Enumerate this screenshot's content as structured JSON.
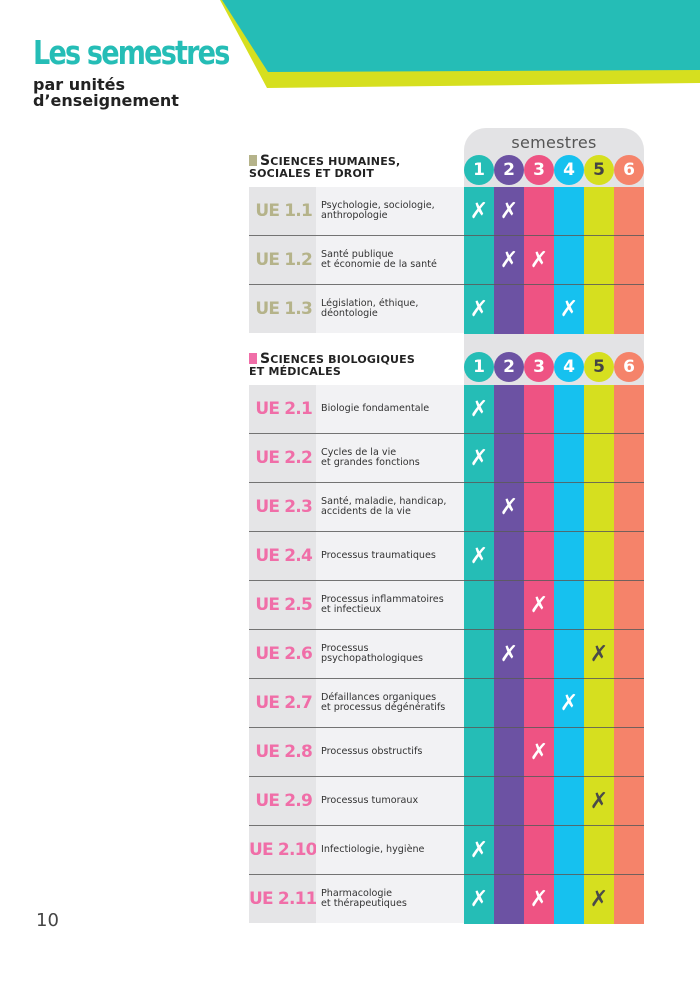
{
  "header": {
    "title": "Les semestres",
    "subtitle_line1": "par unités",
    "subtitle_line2": "d’enseignement",
    "colors": {
      "title": "#25bdb6",
      "banner_teal": "#25bdb6",
      "banner_lime": "#d6df1f"
    }
  },
  "semesters": {
    "label": "semestres",
    "numbers": [
      "1",
      "2",
      "3",
      "4",
      "5",
      "6"
    ],
    "colors": [
      "#25bdb6",
      "#6c52a3",
      "#ee5383",
      "#16c1ef",
      "#d6df1f",
      "#f5836a"
    ],
    "number_text_colors": [
      "#ffffff",
      "#ffffff",
      "#ffffff",
      "#ffffff",
      "#444444",
      "#ffffff"
    ]
  },
  "mark_symbol": "✗",
  "mark_colors": {
    "default": "#ffffff",
    "on_lime": "#4a4a4a"
  },
  "sections": [
    {
      "title_first": "S",
      "title_rest_line1": "ciences humaines,",
      "title_line2": "sociales et droit",
      "accent_color": "#b5b38a",
      "rows": [
        {
          "code": "UE 1.1",
          "desc": "Psychologie, sociologie,\nanthropologie",
          "semesters": [
            1,
            2
          ]
        },
        {
          "code": "UE 1.2",
          "desc": "Santé publique\net économie de la santé",
          "semesters": [
            2,
            3
          ]
        },
        {
          "code": "UE 1.3",
          "desc": "Législation, éthique,\ndéontologie",
          "semesters": [
            1,
            4
          ]
        }
      ]
    },
    {
      "title_first": "S",
      "title_rest_line1": "ciences biologiques",
      "title_line2": "et médicales",
      "accent_color": "#f06ea8",
      "rows": [
        {
          "code": "UE 2.1",
          "desc": "Biologie fondamentale",
          "semesters": [
            1
          ]
        },
        {
          "code": "UE 2.2",
          "desc": "Cycles de la vie\net grandes fonctions",
          "semesters": [
            1
          ]
        },
        {
          "code": "UE 2.3",
          "desc": "Santé, maladie, handicap,\naccidents de la vie",
          "semesters": [
            2
          ]
        },
        {
          "code": "UE 2.4",
          "desc": "Processus traumatiques",
          "semesters": [
            1
          ]
        },
        {
          "code": "UE 2.5",
          "desc": "Processus inflammatoires\net infectieux",
          "semesters": [
            3
          ]
        },
        {
          "code": "UE 2.6",
          "desc": "Processus\npsychopathologiques",
          "semesters": [
            2,
            5
          ]
        },
        {
          "code": "UE 2.7",
          "desc": "Défaillances organiques\net processus dégénératifs",
          "semesters": [
            4
          ]
        },
        {
          "code": "UE 2.8",
          "desc": "Processus obstructifs",
          "semesters": [
            3
          ]
        },
        {
          "code": "UE 2.9",
          "desc": "Processus tumoraux",
          "semesters": [
            5
          ]
        },
        {
          "code": "UE 2.10",
          "desc": "Infectiologie, hygiène",
          "semesters": [
            1
          ]
        },
        {
          "code": "UE 2.11",
          "desc": "Pharmacologie\net thérapeutiques",
          "semesters": [
            1,
            3,
            5
          ]
        }
      ]
    }
  ],
  "page_number": "10"
}
